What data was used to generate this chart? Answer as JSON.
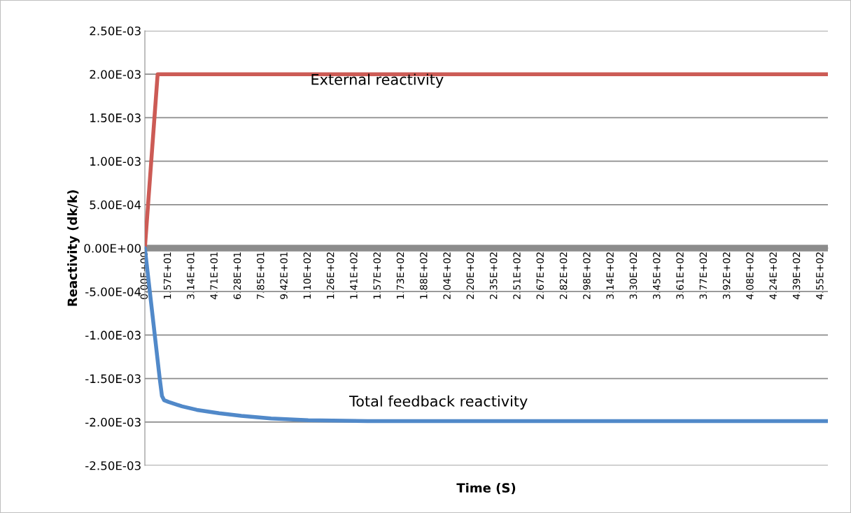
{
  "chart_data": {
    "type": "line",
    "xlabel": "Time (S)",
    "ylabel": "Reactivity (dk/k)",
    "series": [
      {
        "color": "#cc5b55",
        "x": [
          0,
          8.6,
          460
        ],
        "values": [
          0,
          0.002,
          0.002
        ]
      },
      {
        "color": "#5189c9",
        "x": [
          0,
          4,
          8,
          10,
          11.5,
          13,
          16,
          25,
          35,
          50,
          65,
          85,
          110,
          150,
          200,
          460
        ],
        "values": [
          0,
          -0.0006,
          -0.0012,
          -0.0015,
          -0.0017,
          -0.00175,
          -0.00177,
          -0.00182,
          -0.00186,
          -0.0019,
          -0.00193,
          -0.00196,
          -0.00198,
          -0.00199,
          -0.00199,
          -0.00199
        ]
      }
    ],
    "annotations": [
      "External reactivity",
      "Total feedback reactivity"
    ],
    "ref_lines": [
      {
        "axis": "y",
        "value": 0,
        "color": "#8c8c8c"
      }
    ],
    "xlim": [
      0,
      460
    ],
    "xticks": [
      {
        "value": 0,
        "label": "0.00E+00"
      },
      {
        "value": 15.69,
        "label": "1.57E+01"
      },
      {
        "value": 31.38,
        "label": "3.14E+01"
      },
      {
        "value": 47.08,
        "label": "4.71E+01"
      },
      {
        "value": 62.77,
        "label": "6.28E+01"
      },
      {
        "value": 78.46,
        "label": "7.85E+01"
      },
      {
        "value": 94.15,
        "label": "9.42E+01"
      },
      {
        "value": 109.84,
        "label": "1.10E+02"
      },
      {
        "value": 125.54,
        "label": "1.26E+02"
      },
      {
        "value": 141.23,
        "label": "1.41E+02"
      },
      {
        "value": 156.92,
        "label": "1.57E+02"
      },
      {
        "value": 172.61,
        "label": "1.73E+02"
      },
      {
        "value": 188.3,
        "label": "1.88E+02"
      },
      {
        "value": 204,
        "label": "2.04E+02"
      },
      {
        "value": 219.69,
        "label": "2.20E+02"
      },
      {
        "value": 235.38,
        "label": "2.35E+02"
      },
      {
        "value": 251.07,
        "label": "2.51E+02"
      },
      {
        "value": 266.76,
        "label": "2.67E+02"
      },
      {
        "value": 282.46,
        "label": "2.82E+02"
      },
      {
        "value": 298.15,
        "label": "2.98E+02"
      },
      {
        "value": 313.84,
        "label": "3.14E+02"
      },
      {
        "value": 329.53,
        "label": "3.30E+02"
      },
      {
        "value": 345.22,
        "label": "3.45E+02"
      },
      {
        "value": 360.92,
        "label": "3.61E+02"
      },
      {
        "value": 376.61,
        "label": "3.77E+02"
      },
      {
        "value": 392.3,
        "label": "3.92E+02"
      },
      {
        "value": 407.99,
        "label": "4.08E+02"
      },
      {
        "value": 423.68,
        "label": "4.24E+02"
      },
      {
        "value": 439.38,
        "label": "4.39E+02"
      },
      {
        "value": 455.07,
        "label": "4.55E+02"
      }
    ],
    "ylim": [
      -0.0025,
      0.0025
    ],
    "yticks": [
      {
        "value": -0.0025,
        "label": "-2.50E-03"
      },
      {
        "value": -0.002,
        "label": "-2.00E-03"
      },
      {
        "value": -0.0015,
        "label": "-1.50E-03"
      },
      {
        "value": -0.001,
        "label": "-1.00E-03"
      },
      {
        "value": -0.0005,
        "label": "-5.00E-04"
      },
      {
        "value": 0,
        "label": "0.00E+00"
      },
      {
        "value": 0.0005,
        "label": "5.00E-04"
      },
      {
        "value": 0.001,
        "label": "1.00E-03"
      },
      {
        "value": 0.0015,
        "label": "1.50E-03"
      },
      {
        "value": 0.002,
        "label": "2.00E-03"
      },
      {
        "value": 0.0025,
        "label": "2.50E-03"
      }
    ],
    "grid": "y",
    "legend": false,
    "marker": "none",
    "line_style": "solid"
  }
}
